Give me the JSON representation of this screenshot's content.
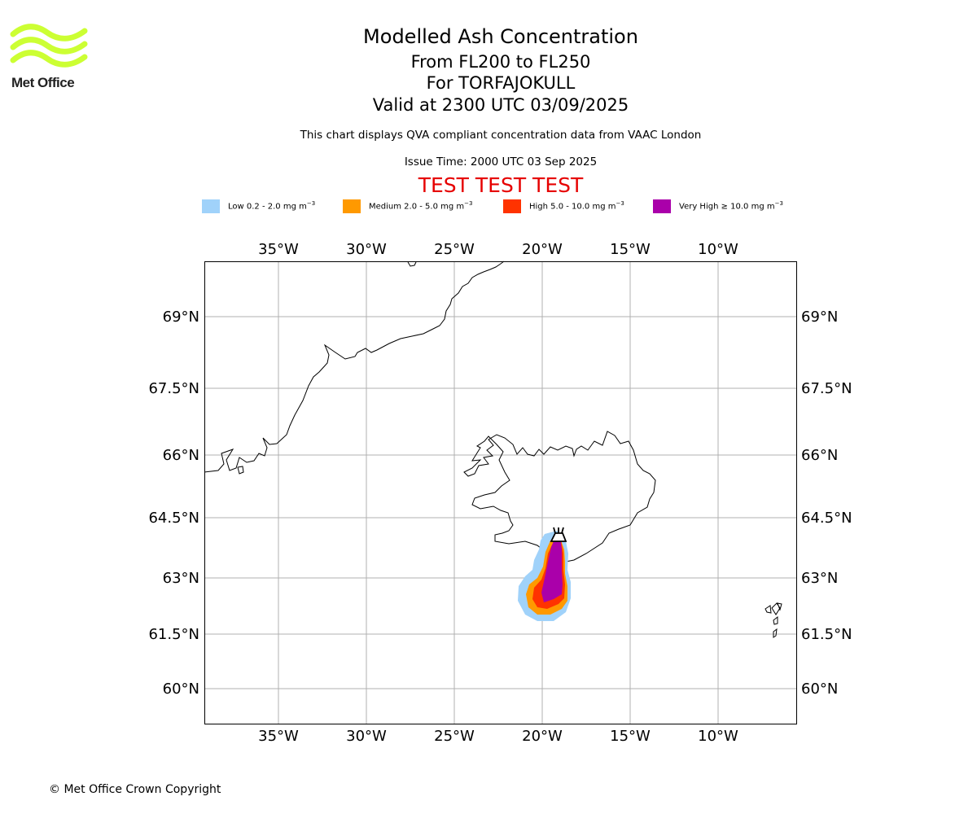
{
  "logo": {
    "name": "Met Office"
  },
  "header": {
    "title": "Modelled Ash Concentration",
    "levels": "From FL200 to FL250",
    "volcano": "For TORFAJOKULL",
    "valid": "Valid at 2300 UTC 03/09/2025",
    "description": "This chart displays QVA compliant concentration data from VAAC London",
    "issue_time": "Issue Time: 2000 UTC 03 Sep 2025",
    "test_banner": "TEST TEST TEST"
  },
  "legend": [
    {
      "label": "Low 0.2 - 2.0 mg m",
      "exp": "−3",
      "color": "#a0d2fa"
    },
    {
      "label": "Medium 2.0 - 5.0 mg m",
      "exp": "−3",
      "color": "#ff9900"
    },
    {
      "label": "High 5.0 - 10.0 mg m",
      "exp": "−3",
      "color": "#ff3300"
    },
    {
      "label": "Very High  ≥  10.0 mg m",
      "exp": "−3",
      "color": "#aa00aa"
    }
  ],
  "map": {
    "lon_ticks": [
      "35°W",
      "30°W",
      "25°W",
      "20°W",
      "15°W",
      "10°W"
    ],
    "lat_ticks": [
      "69°N",
      "67.5°N",
      "66°N",
      "64.5°N",
      "63°N",
      "61.5°N",
      "60°N"
    ]
  },
  "footer": {
    "copyright": "© Met Office Crown Copyright"
  }
}
